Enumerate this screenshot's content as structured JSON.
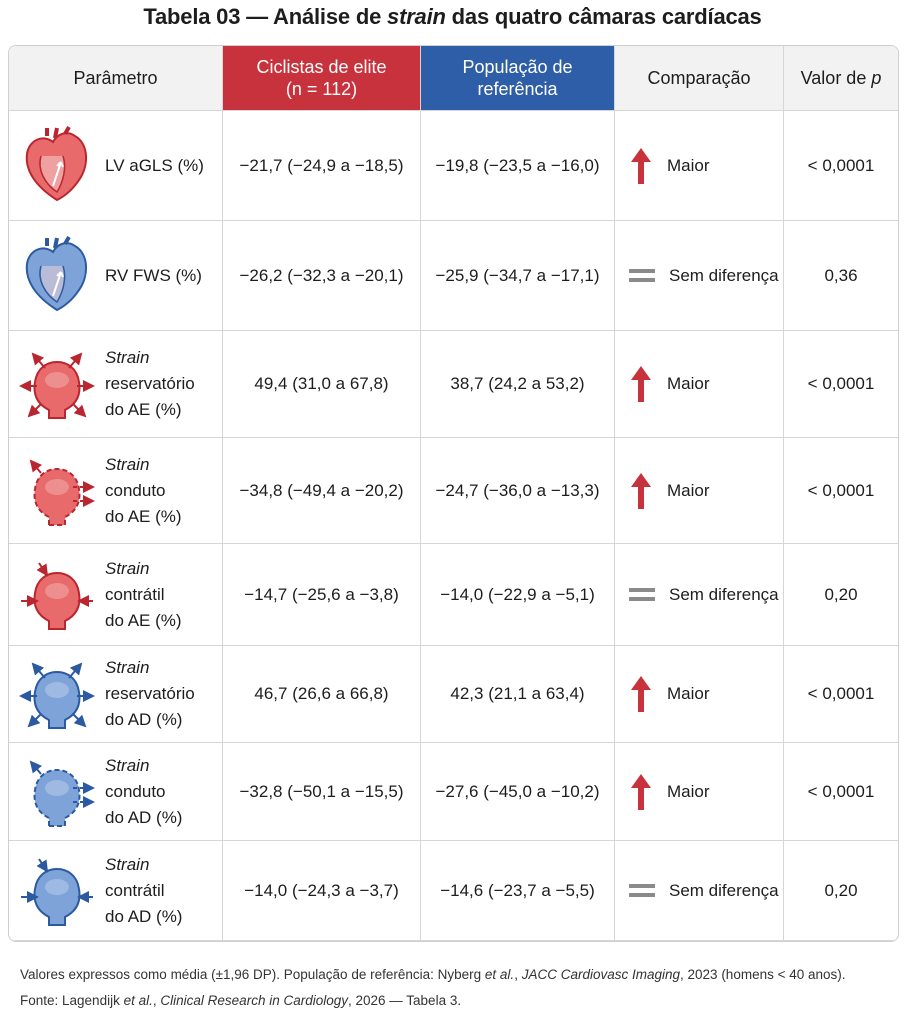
{
  "title": {
    "before": "Tabela 03 — Análise de",
    "emphasis": "strain",
    "after": "das quatro câmaras cardíacas"
  },
  "header": {
    "parameter": "Parâmetro",
    "elite": [
      "Ciclistas de elite",
      "(n = 112)"
    ],
    "reference": [
      "População de",
      "referência"
    ],
    "comparison": "Comparação",
    "p_value": {
      "text": "Valor de",
      "emphasis": "p"
    }
  },
  "rows": [
    {
      "parameter": {
        "lines": [
          "LV aGLS (%)"
        ]
      },
      "elite": "−21,7 (−24,9 a −18,5)",
      "reference": "−19,8 (−23,5 a −16,0)",
      "comparison": "Maior",
      "p": "< 0,0001"
    },
    {
      "parameter": {
        "lines": [
          "RV FWS (%)"
        ]
      },
      "elite": "−26,2 (−32,3 a −20,1)",
      "reference": "−25,9 (−34,7 a −17,1)",
      "comparison": "Sem diferença",
      "p": "0,36"
    },
    {
      "parameter": {
        "emphasis": "Strain",
        "lines": [
          "reservatório",
          "do AE (%)"
        ]
      },
      "elite": "49,4 (31,0 a 67,8)",
      "reference": "38,7 (24,2 a 53,2)",
      "comparison": "Maior",
      "p": "< 0,0001"
    },
    {
      "parameter": {
        "emphasis": "Strain",
        "lines": [
          "conduto",
          "do AE (%)"
        ]
      },
      "elite": "−34,8 (−49,4 a −20,2)",
      "reference": "−24,7 (−36,0 a −13,3)",
      "comparison": "Maior",
      "p": "< 0,0001"
    },
    {
      "parameter": {
        "emphasis": "Strain",
        "lines": [
          "contrátil",
          "do AE (%)"
        ]
      },
      "elite": "−14,7 (−25,6 a −3,8)",
      "reference": "−14,0 (−22,9 a −5,1)",
      "comparison": "Sem diferença",
      "p": "0,20"
    },
    {
      "parameter": {
        "emphasis": "Strain",
        "lines": [
          "reservatório",
          "do AD (%)"
        ]
      },
      "elite": "46,7 (26,6 a 66,8)",
      "reference": "42,3 (21,1 a 63,4)",
      "comparison": "Maior",
      "p": "< 0,0001"
    },
    {
      "parameter": {
        "emphasis": "Strain",
        "lines": [
          "conduto",
          "do AD (%)"
        ]
      },
      "elite": "−32,8 (−50,1 a −15,5)",
      "reference": "−27,6 (−45,0 a −10,2)",
      "comparison": "Maior",
      "p": "< 0,0001"
    },
    {
      "parameter": {
        "emphasis": "Strain",
        "lines": [
          "contrátil",
          "do AD (%)"
        ]
      },
      "elite": "−14,0 (−24,3 a −3,7)",
      "reference": "−14,6 (−23,7 a −5,5)",
      "comparison": "Sem diferença",
      "p": "0,20"
    }
  ],
  "footnotes": [
    [
      {
        "text": "Valores expressos como média (±1,96 DP). População de referência: Nyberg"
      },
      {
        "text": "et al.",
        "italic": true
      },
      {
        "text": ","
      },
      {
        "text": "JACC Cardiovasc Imaging",
        "italic": true
      },
      {
        "text": ", 2023 (homens < 40 anos)."
      }
    ],
    [
      {
        "text": "Fonte: Lagendijk"
      },
      {
        "text": "et al.",
        "italic": true
      },
      {
        "text": ","
      },
      {
        "text": "Clinical Research in Cardiology",
        "italic": true
      },
      {
        "text": ", 2026 — Tabela 3."
      }
    ]
  ]
}
